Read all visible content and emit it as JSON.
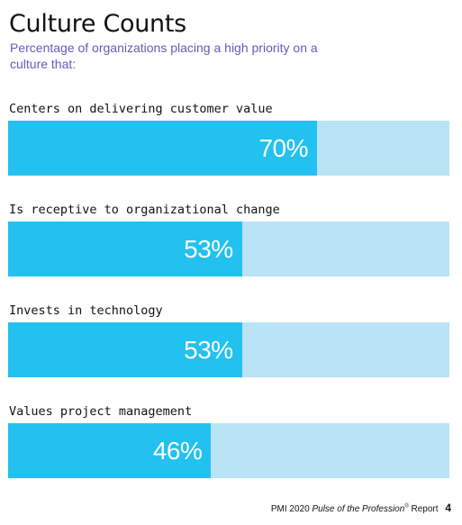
{
  "title": "Culture Counts",
  "subtitle": "Percentage of organizations placing a high priority on a culture that:",
  "colors": {
    "fill": "#22c1ef",
    "track": "#b8e4f6",
    "subtitle": "#6a58b8",
    "value_text": "#ffffff"
  },
  "chart_data": {
    "type": "bar",
    "orientation": "horizontal",
    "title": "Culture Counts",
    "subtitle": "Percentage of organizations placing a high priority on a culture that:",
    "categories": [
      "Centers on delivering customer value",
      "Is receptive to organizational change",
      "Invests in technology",
      "Values project management"
    ],
    "values": [
      70,
      53,
      53,
      46
    ],
    "value_labels": [
      "70%",
      "53%",
      "53%",
      "46%"
    ],
    "xlim": [
      0,
      100
    ],
    "unit": "%",
    "grid": false
  },
  "footer": {
    "prefix": "PMI 2020",
    "italic": "Pulse of the Profession",
    "mark": "®",
    "suffix": "Report",
    "page": "4"
  }
}
